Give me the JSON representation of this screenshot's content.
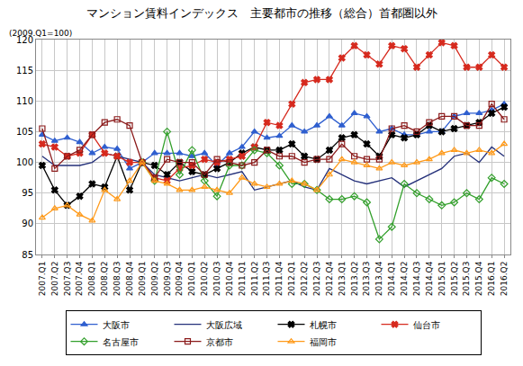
{
  "chart_data": {
    "type": "line",
    "title": "マンション賃料インデックス　主要都市の推移（総合）首都圏以外",
    "subtitle": "(2009.Q1=100)",
    "categories": [
      "2007.Q1",
      "2007.Q2",
      "2007.Q3",
      "2007.Q4",
      "2008.Q1",
      "2008.Q2",
      "2008.Q3",
      "2008.Q4",
      "2009.Q1",
      "2009.Q2",
      "2009.Q3",
      "2009.Q4",
      "2010.Q1",
      "2010.Q2",
      "2010.Q3",
      "2010.Q4",
      "2011.Q1",
      "2011.Q2",
      "2011.Q3",
      "2011.Q4",
      "2012.Q1",
      "2012.Q2",
      "2012.Q3",
      "2012.Q4",
      "2013.Q1",
      "2013.Q2",
      "2013.Q3",
      "2013.Q4",
      "2014.Q1",
      "2014.Q2",
      "2014.Q3",
      "2014.Q4",
      "2015.Q1",
      "2015.Q2",
      "2015.Q3",
      "2015.Q4",
      "2016.Q1",
      "2016.Q2"
    ],
    "series": [
      {
        "name": "大阪市",
        "color": "#2f5fcf",
        "marker": "triangle-up",
        "values": [
          104.5,
          103.5,
          104,
          103.3,
          101.5,
          102.5,
          102.2,
          99,
          100,
          101.5,
          101.5,
          101.5,
          101,
          101.5,
          99.5,
          101.5,
          102.5,
          105,
          104,
          104.3,
          106,
          105,
          106,
          107.5,
          106,
          108,
          107.5,
          105,
          105.5,
          104.5,
          104.5,
          105,
          105,
          107.5,
          108,
          108,
          108.5,
          109.5
        ]
      },
      {
        "name": "大阪広域",
        "color": "#24307a",
        "marker": "none",
        "values": [
          101,
          99.5,
          99.5,
          99.5,
          100,
          101.5,
          101,
          100.5,
          100,
          98,
          97.5,
          97,
          97.5,
          98,
          97.5,
          98,
          98.5,
          95.5,
          96,
          96.5,
          97,
          96,
          95.5,
          99,
          98,
          97,
          96.5,
          97,
          97.5,
          96,
          97,
          98,
          99,
          101,
          101.5,
          100,
          102.5,
          101
        ]
      },
      {
        "name": "札幌市",
        "color": "#000000",
        "marker": "x",
        "values": [
          99.5,
          95.5,
          93,
          94.5,
          96.5,
          96,
          101,
          95.5,
          100,
          99.5,
          98,
          100,
          98.5,
          98,
          99,
          100,
          101.5,
          102.5,
          102,
          102,
          103,
          101,
          100.5,
          102,
          104,
          104.5,
          103,
          101,
          104.5,
          104,
          104.5,
          106,
          105,
          105.5,
          106,
          106.5,
          108,
          109
        ]
      },
      {
        "name": "仙台市",
        "color": "#d62a1e",
        "marker": "x",
        "values": [
          103,
          102.5,
          101,
          101.5,
          104.5,
          101.5,
          101,
          100,
          100,
          97.5,
          97,
          99,
          99.5,
          100.5,
          100,
          100.5,
          101,
          102.5,
          106.5,
          106,
          109.5,
          113,
          113.5,
          113.5,
          117,
          119,
          117.5,
          116,
          119,
          118.5,
          115.5,
          117.5,
          119.5,
          119,
          115.5,
          115.5,
          117.5,
          115.5
        ]
      },
      {
        "name": "名古屋市",
        "color": "#33a02c",
        "marker": "diamond-open",
        "values": [
          null,
          null,
          null,
          null,
          null,
          null,
          null,
          null,
          100,
          97,
          105,
          98,
          102,
          97,
          94.5,
          99.5,
          99.5,
          102,
          101.5,
          99.5,
          96.5,
          96.5,
          95.5,
          94,
          94,
          94.5,
          93.5,
          87.5,
          89.5,
          96.5,
          95,
          94,
          93,
          93.5,
          95,
          94,
          97.5,
          96.5
        ]
      },
      {
        "name": "京都市",
        "color": "#8b1a1a",
        "marker": "square-open",
        "values": [
          105.5,
          99,
          101,
          102,
          104.5,
          106.5,
          107,
          106,
          100,
          97.5,
          100.5,
          100,
          100,
          98,
          100.5,
          100,
          99.5,
          100,
          102,
          101,
          101,
          100,
          100.5,
          100.5,
          103,
          101,
          100.5,
          100.5,
          105.5,
          106,
          105,
          106.5,
          107.5,
          107.5,
          106,
          106,
          109.5,
          107
        ]
      },
      {
        "name": "福岡市",
        "color": "#ff9a1a",
        "marker": "triangle-up-open",
        "values": [
          91,
          92.5,
          93,
          91.5,
          90.5,
          95.5,
          94,
          97,
          100,
          97,
          96.5,
          95.5,
          95.5,
          96,
          95.5,
          95,
          97.5,
          96.5,
          96,
          96.5,
          97,
          96.5,
          95.5,
          98,
          100.5,
          100,
          99.5,
          99,
          100,
          99.5,
          100,
          100.5,
          101.5,
          102,
          101.5,
          102,
          101.5,
          103
        ]
      }
    ],
    "ylim": [
      85,
      120
    ],
    "yticks": [
      85,
      90,
      95,
      100,
      105,
      110,
      115,
      120
    ],
    "grid": true,
    "legend": "bottom"
  }
}
